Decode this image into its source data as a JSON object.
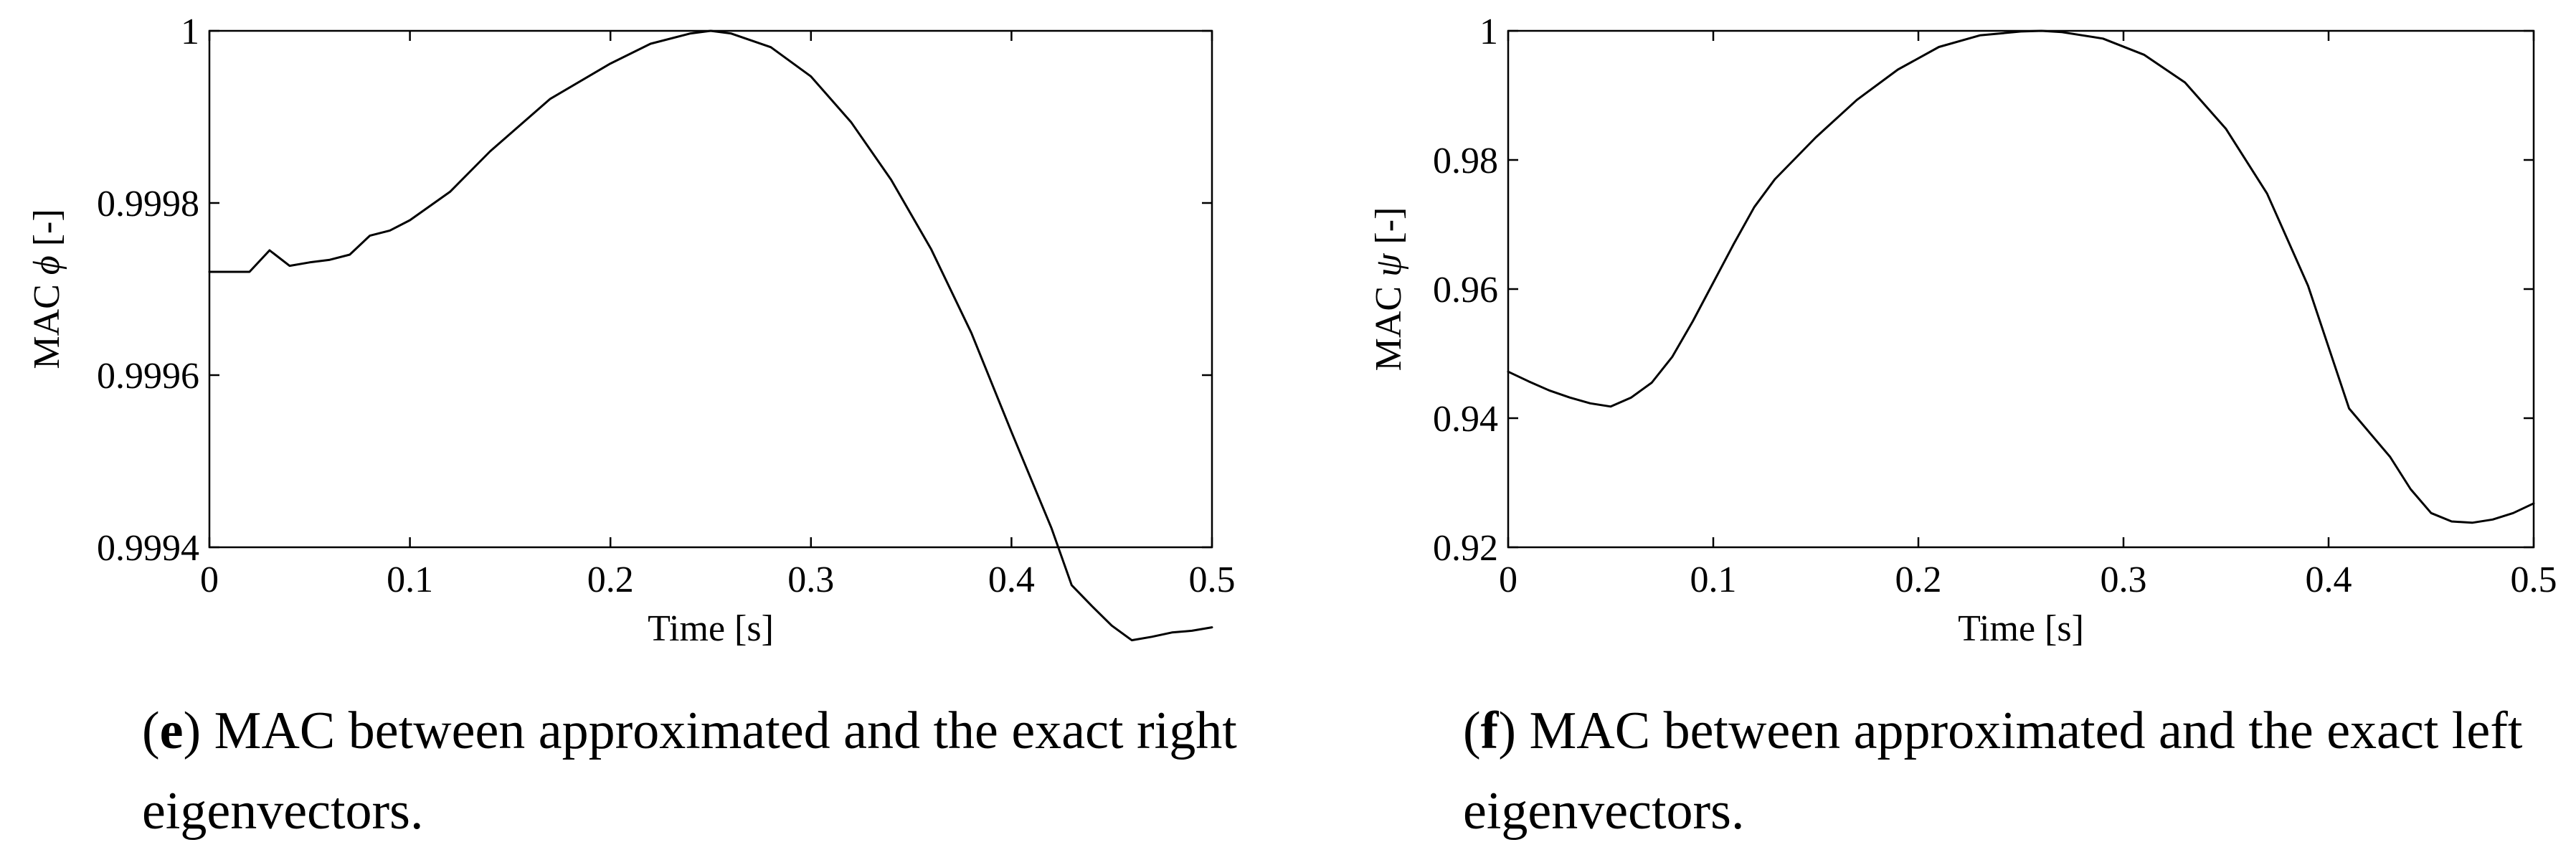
{
  "chart_data": [
    {
      "id": "e",
      "type": "line",
      "title": "",
      "xlabel": "Time [s]",
      "ylabel_prefix": "MAC ",
      "ylabel_symbol": "ϕ",
      "ylabel_suffix": " [-]",
      "xlim": [
        0,
        0.5
      ],
      "ylim": [
        0.9994,
        1.0
      ],
      "xticks": [
        0,
        0.1,
        0.2,
        0.3,
        0.4,
        0.5
      ],
      "xtick_labels": [
        "0",
        "0.1",
        "0.2",
        "0.3",
        "0.4",
        "0.5"
      ],
      "yticks": [
        0.9994,
        0.9996,
        0.9998,
        1.0
      ],
      "ytick_labels": [
        "0.9994",
        "0.9996",
        "0.9998",
        "1"
      ],
      "grid": false,
      "series": [
        {
          "name": "MAC phi",
          "x": [
            0,
            0.02,
            0.03,
            0.04,
            0.05,
            0.06,
            0.07,
            0.08,
            0.09,
            0.1,
            0.12,
            0.14,
            0.17,
            0.2,
            0.22,
            0.24,
            0.25,
            0.26,
            0.28,
            0.3,
            0.32,
            0.34,
            0.36,
            0.38,
            0.4,
            0.42,
            0.43,
            0.44,
            0.45,
            0.46,
            0.47,
            0.48,
            0.49,
            0.5
          ],
          "y": [
            0.99972,
            0.99972,
            0.999745,
            0.999727,
            0.999731,
            0.999734,
            0.99974,
            0.999762,
            0.999768,
            0.99978,
            0.999813,
            0.99986,
            0.999921,
            0.999962,
            0.999985,
            0.999997,
            1.0,
            0.999997,
            0.999981,
            0.999947,
            0.999894,
            0.999827,
            0.999746,
            0.999649,
            0.999534,
            0.999422,
            0.999356,
            0.999332,
            0.999309,
            0.999292,
            0.999296,
            0.999301,
            0.999303,
            0.999307
          ]
        }
      ],
      "caption_label": "e",
      "caption_text": " MAC between approximated and the exact right eigenvectors."
    },
    {
      "id": "f",
      "type": "line",
      "title": "",
      "xlabel": "Time [s]",
      "ylabel_prefix": "MAC ",
      "ylabel_symbol": "ψ",
      "ylabel_suffix": " [-]",
      "xlim": [
        0,
        0.5
      ],
      "ylim": [
        0.92,
        1.0
      ],
      "xticks": [
        0,
        0.1,
        0.2,
        0.3,
        0.4,
        0.5
      ],
      "xtick_labels": [
        "0",
        "0.1",
        "0.2",
        "0.3",
        "0.4",
        "0.5"
      ],
      "yticks": [
        0.92,
        0.94,
        0.96,
        0.98,
        1.0
      ],
      "ytick_labels": [
        "0.92",
        "0.94",
        "0.96",
        "0.98",
        "1"
      ],
      "grid": false,
      "series": [
        {
          "name": "MAC psi",
          "x": [
            0,
            0.01,
            0.02,
            0.03,
            0.04,
            0.05,
            0.06,
            0.07,
            0.08,
            0.09,
            0.1,
            0.11,
            0.12,
            0.13,
            0.15,
            0.17,
            0.19,
            0.21,
            0.23,
            0.25,
            0.26,
            0.27,
            0.29,
            0.31,
            0.33,
            0.35,
            0.37,
            0.39,
            0.41,
            0.43,
            0.44,
            0.45,
            0.46,
            0.47,
            0.48,
            0.49,
            0.5
          ],
          "y": [
            0.9472,
            0.9457,
            0.9443,
            0.9432,
            0.9423,
            0.9418,
            0.9432,
            0.9455,
            0.9495,
            0.955,
            0.961,
            0.967,
            0.9727,
            0.977,
            0.9835,
            0.9893,
            0.994,
            0.9975,
            0.9993,
            0.9999,
            1.0,
            0.9998,
            0.9988,
            0.9963,
            0.992,
            0.9848,
            0.9748,
            0.9605,
            0.9415,
            0.934,
            0.929,
            0.9253,
            0.924,
            0.9238,
            0.9243,
            0.9253,
            0.9268
          ]
        }
      ],
      "caption_label": "f",
      "caption_text": " MAC between approximated and the exact left eigenvectors."
    }
  ]
}
